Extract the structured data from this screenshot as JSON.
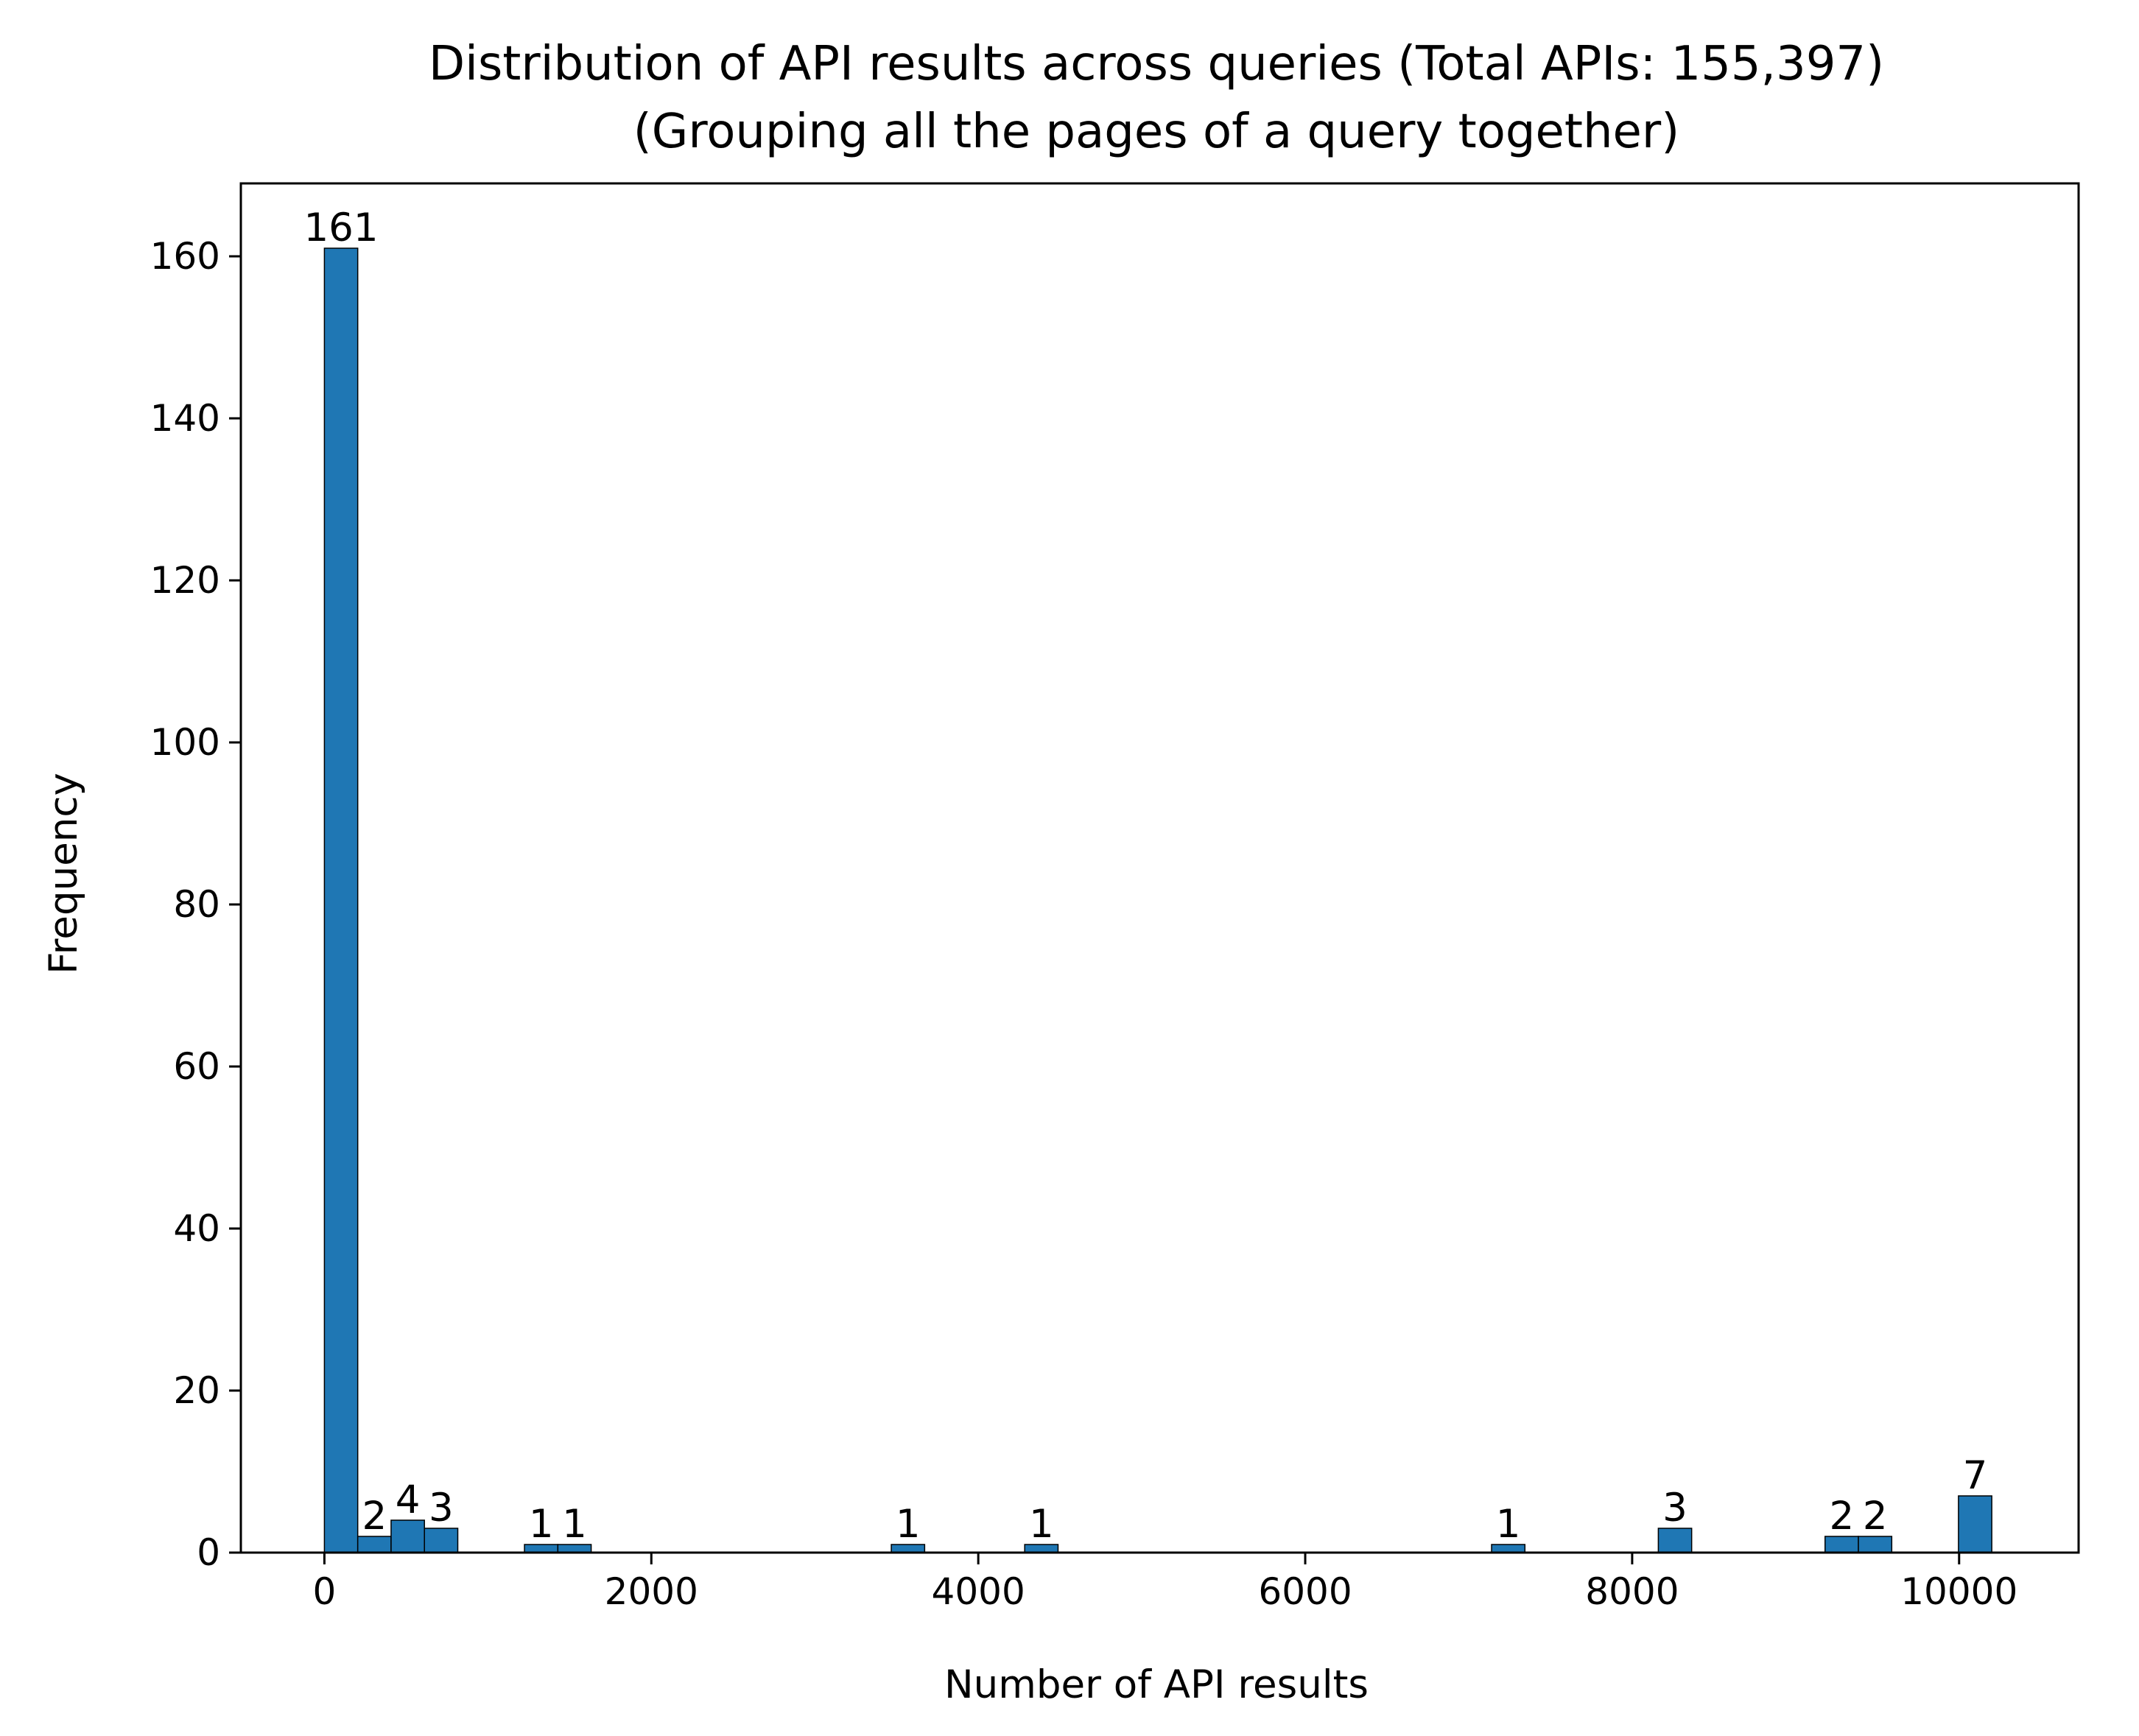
{
  "chart_data": {
    "type": "bar",
    "title": "Distribution of API results across queries (Total APIs: 155,397)",
    "subtitle": "(Grouping all the pages of a query together)",
    "xlabel": "Number of API results",
    "ylabel": "Frequency",
    "xlim": [
      -511,
      10731
    ],
    "ylim": [
      0,
      169
    ],
    "x_ticks": [
      0,
      2000,
      4000,
      6000,
      8000,
      10000
    ],
    "y_ticks": [
      0,
      20,
      40,
      60,
      80,
      100,
      120,
      140,
      160
    ],
    "bar_color": "#1f77b4",
    "edge_color": "#000000",
    "bins": [
      {
        "x0": 0,
        "x1": 204,
        "value": 161,
        "label": "161"
      },
      {
        "x0": 204,
        "x1": 408,
        "value": 2,
        "label": "2"
      },
      {
        "x0": 408,
        "x1": 612,
        "value": 4,
        "label": "4"
      },
      {
        "x0": 612,
        "x1": 816,
        "value": 3,
        "label": "3"
      },
      {
        "x0": 1224,
        "x1": 1428,
        "value": 1,
        "label": "1"
      },
      {
        "x0": 1428,
        "x1": 1632,
        "value": 1,
        "label": "1"
      },
      {
        "x0": 3468,
        "x1": 3672,
        "value": 1,
        "label": "1"
      },
      {
        "x0": 4284,
        "x1": 4488,
        "value": 1,
        "label": "1"
      },
      {
        "x0": 7140,
        "x1": 7344,
        "value": 1,
        "label": "1"
      },
      {
        "x0": 8160,
        "x1": 8364,
        "value": 3,
        "label": "3"
      },
      {
        "x0": 9180,
        "x1": 9384,
        "value": 2,
        "label": "2"
      },
      {
        "x0": 9384,
        "x1": 9588,
        "value": 2,
        "label": "2"
      },
      {
        "x0": 9996,
        "x1": 10200,
        "value": 7,
        "label": "7"
      }
    ]
  }
}
